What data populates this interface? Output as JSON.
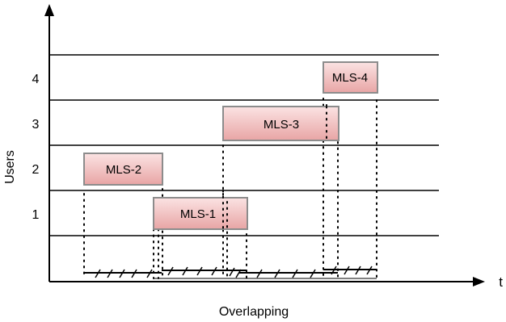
{
  "y_axis_label": "Users",
  "x_axis_label": "t",
  "caption": "Overlapping",
  "user_rows": [
    "1",
    "2",
    "3",
    "4"
  ],
  "sessions": [
    {
      "label": "MLS-2",
      "user": "2"
    },
    {
      "label": "MLS-1",
      "user": "1"
    },
    {
      "label": "MLS-3",
      "user": "3"
    },
    {
      "label": "MLS-4",
      "user": "4"
    }
  ],
  "colors": {
    "box_fill_top": "#fbe3e3",
    "box_fill_bottom": "#e8a5a5",
    "box_border": "#8c8c8c",
    "line": "#000000"
  }
}
